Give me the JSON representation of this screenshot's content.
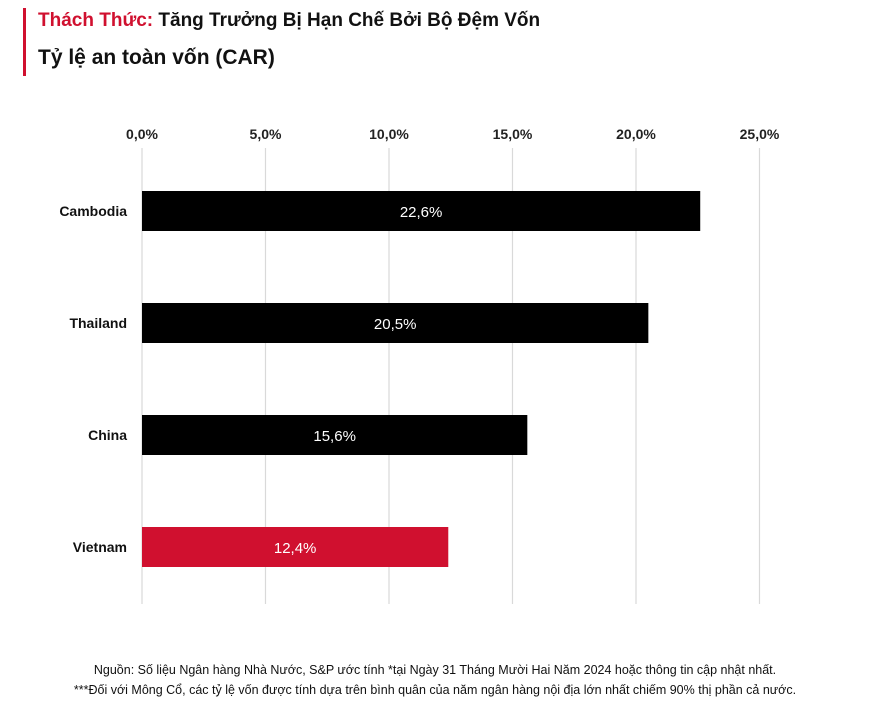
{
  "header": {
    "highlight": "Thách Thức:",
    "title": "Tăng Trưởng Bị Hạn Chế Bởi Bộ Đệm Vốn",
    "subtitle": "Tỷ lệ an toàn vốn (CAR)"
  },
  "colors": {
    "accent": "#d0102f",
    "bar": "#000000",
    "grid": "#d9d9d9"
  },
  "chart_data": {
    "type": "bar",
    "orientation": "horizontal",
    "title": "Tỷ lệ an toàn vốn (CAR)",
    "categories": [
      "Cambodia",
      "Thailand",
      "China",
      "Vietnam"
    ],
    "values": [
      22.6,
      20.5,
      15.6,
      12.4
    ],
    "value_labels": [
      "22,6%",
      "20,5%",
      "15,6%",
      "12,4%"
    ],
    "highlight_category": "Vietnam",
    "xlim": [
      0,
      25
    ],
    "xticks": [
      0,
      5,
      10,
      15,
      20,
      25
    ],
    "xtick_labels": [
      "0,0%",
      "5,0%",
      "10,0%",
      "15,0%",
      "20,0%",
      "25,0%"
    ],
    "xaxis_position": "top",
    "grid": true
  },
  "footnotes": {
    "line1": "Nguồn: Số liệu Ngân hàng Nhà Nước, S&P ước tính *tại Ngày 31 Tháng Mười Hai Năm 2024 hoặc thông tin cập nhật nhất.",
    "line2": "***Đối với Mông Cổ, các tỷ lệ vốn được tính dựa trên bình quân của năm ngân hàng nội địa lớn nhất chiếm 90% thị phần cả nước."
  }
}
